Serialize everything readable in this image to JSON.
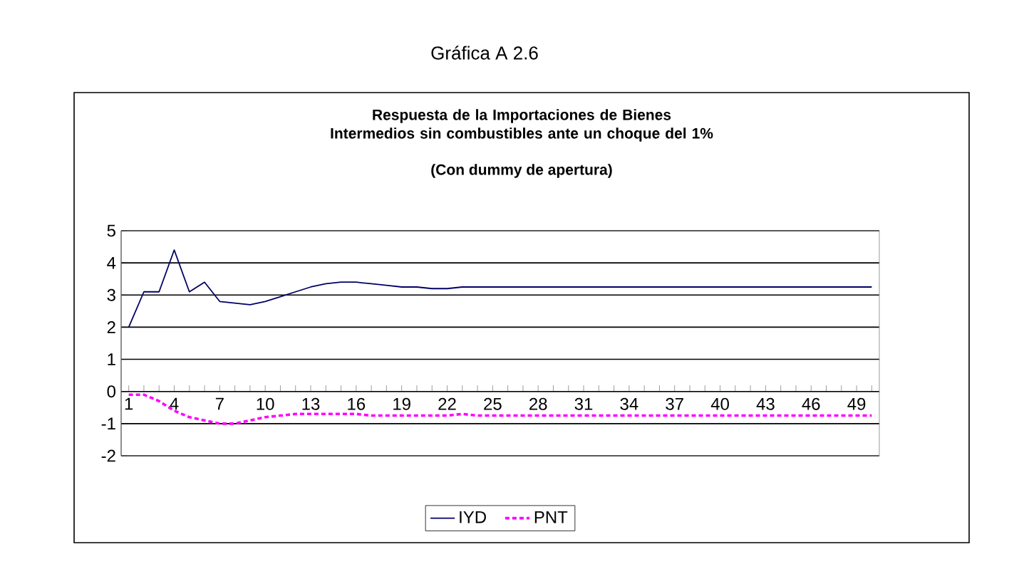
{
  "chart_data": {
    "type": "line",
    "title": "Gráfica A 2.6",
    "subtitle": "Respuesta de la Importaciones de Bienes Intermedios sin combustibles ante un choque del 1%",
    "annotations": [
      "(Con dummy de apertura)"
    ],
    "categories": [
      "1",
      null,
      null,
      "4",
      null,
      null,
      "7",
      null,
      null,
      "10",
      null,
      null,
      "13",
      null,
      null,
      "16",
      null,
      null,
      "19",
      null,
      null,
      "22",
      null,
      null,
      "25",
      null,
      null,
      "28",
      null,
      null,
      "31",
      null,
      null,
      "34",
      null,
      null,
      "37",
      null,
      null,
      "40",
      null,
      null,
      "43",
      null,
      null,
      "46",
      null,
      null,
      "49",
      null
    ],
    "series": [
      {
        "name": "IYD",
        "color": "#000066",
        "line_style": "solid",
        "values": [
          2.0,
          3.1,
          3.1,
          4.4,
          3.1,
          3.4,
          2.8,
          2.75,
          2.7,
          2.8,
          2.95,
          3.1,
          3.25,
          3.35,
          3.4,
          3.4,
          3.35,
          3.3,
          3.25,
          3.25,
          3.2,
          3.2,
          3.25,
          3.25,
          3.25,
          3.25,
          3.25,
          3.25,
          3.25,
          3.25,
          3.25,
          3.25,
          3.25,
          3.25,
          3.25,
          3.25,
          3.25,
          3.25,
          3.25,
          3.25,
          3.25,
          3.25,
          3.25,
          3.25,
          3.25,
          3.25,
          3.25,
          3.25,
          3.25,
          3.25
        ]
      },
      {
        "name": "PNT",
        "color": "#ff00ff",
        "line_style": "dashed",
        "values": [
          -0.1,
          -0.1,
          -0.3,
          -0.6,
          -0.8,
          -0.9,
          -1.0,
          -1.0,
          -0.9,
          -0.8,
          -0.75,
          -0.7,
          -0.7,
          -0.7,
          -0.7,
          -0.7,
          -0.75,
          -0.75,
          -0.75,
          -0.75,
          -0.75,
          -0.75,
          -0.7,
          -0.75,
          -0.75,
          -0.75,
          -0.75,
          -0.75,
          -0.75,
          -0.75,
          -0.75,
          -0.75,
          -0.75,
          -0.75,
          -0.75,
          -0.75,
          -0.75,
          -0.75,
          -0.75,
          -0.75,
          -0.75,
          -0.75,
          -0.75,
          -0.75,
          -0.75,
          -0.75,
          -0.75,
          -0.75,
          -0.75,
          -0.75
        ]
      }
    ],
    "ylim": [
      -2,
      5
    ],
    "yticks": [
      -2,
      -1,
      0,
      1,
      2,
      3,
      4,
      5
    ],
    "grid": "y",
    "legend": "bottom",
    "marker": "none"
  }
}
